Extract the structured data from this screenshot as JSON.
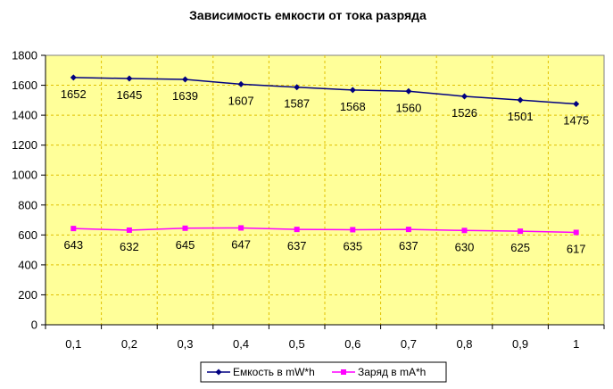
{
  "chart_data": {
    "type": "line",
    "title": "Зависимость емкости от тока разряда",
    "xlabel": "",
    "ylabel": "",
    "categories": [
      "0,1",
      "0,2",
      "0,3",
      "0,4",
      "0,5",
      "0,6",
      "0,7",
      "0,8",
      "0,9",
      "1"
    ],
    "ylim": [
      0,
      1800
    ],
    "yticks": [
      0,
      200,
      400,
      600,
      800,
      1000,
      1200,
      1400,
      1600,
      1800
    ],
    "grid": true,
    "legend_position": "bottom",
    "plot_background": "#ffff99",
    "grid_color": "#e0c000",
    "series": [
      {
        "name": "Емкость в mW*h",
        "values": [
          1652,
          1645,
          1639,
          1607,
          1587,
          1568,
          1560,
          1526,
          1501,
          1475
        ],
        "color": "#000080",
        "marker": "diamond"
      },
      {
        "name": "Заряд в mA*h",
        "values": [
          643,
          632,
          645,
          647,
          637,
          635,
          637,
          630,
          625,
          617
        ],
        "color": "#ff00ff",
        "marker": "square"
      }
    ]
  }
}
